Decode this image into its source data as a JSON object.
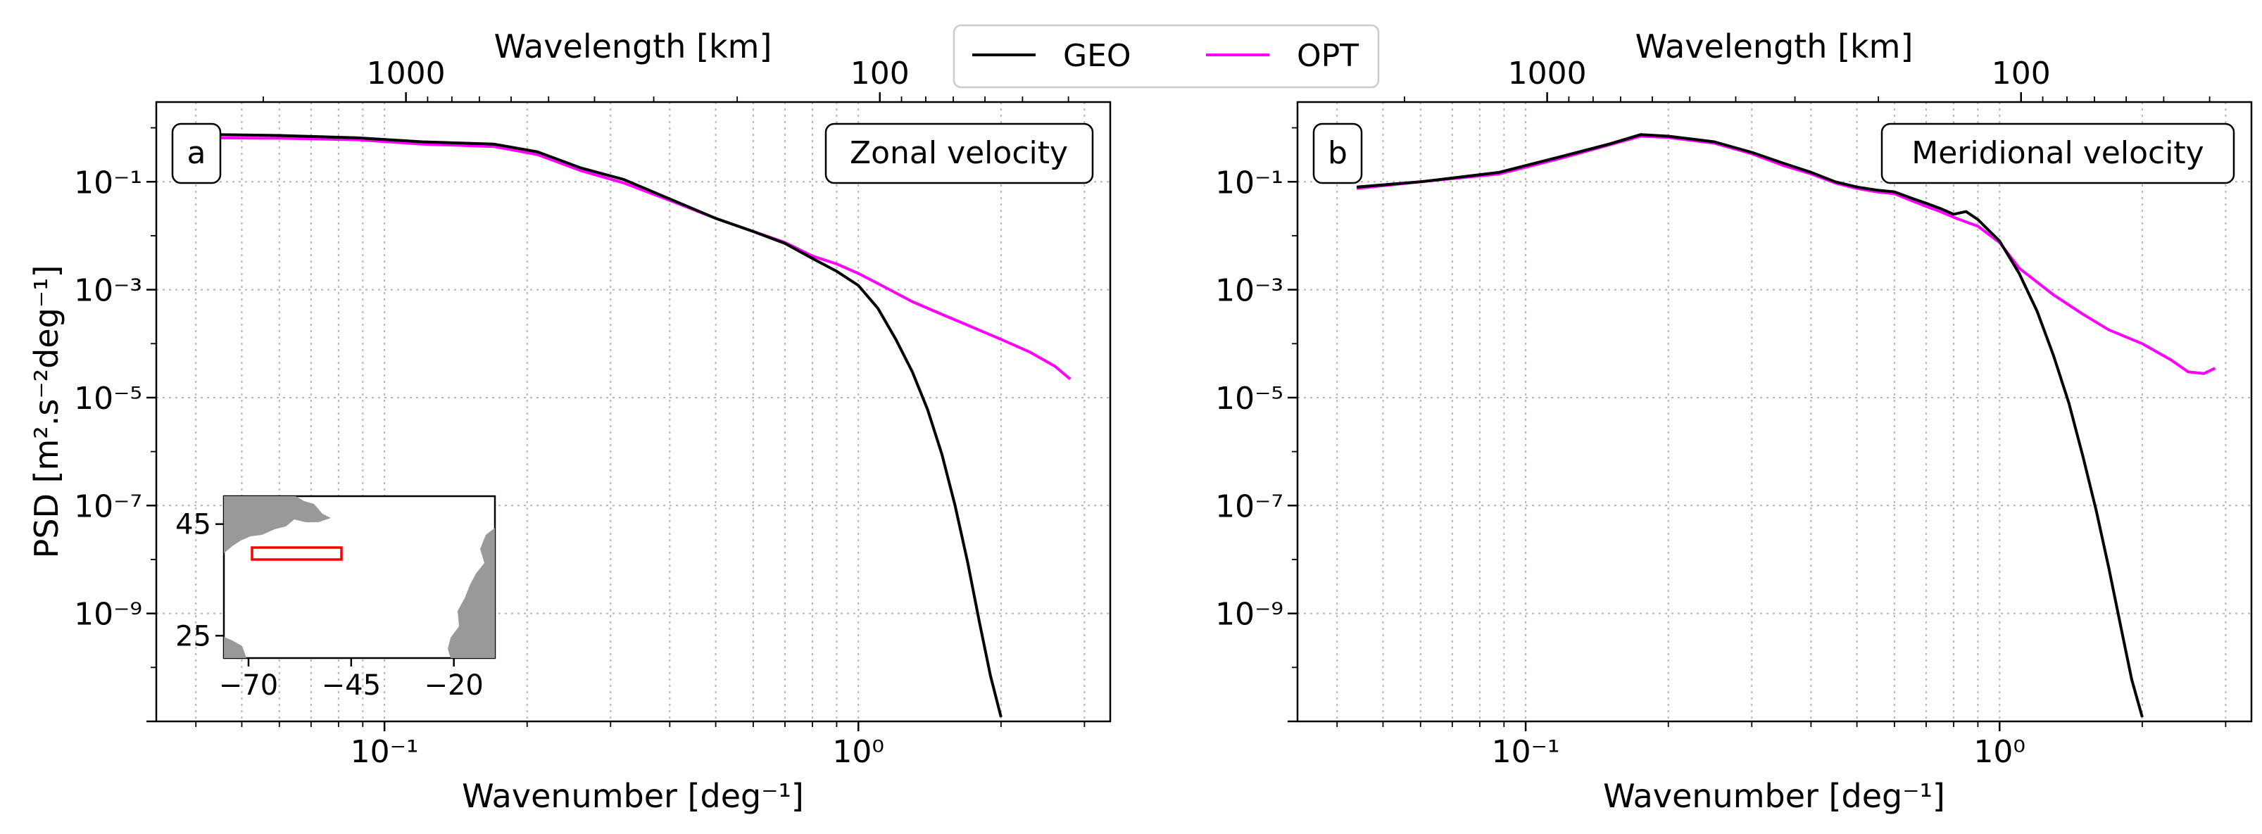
{
  "legend": {
    "items": [
      {
        "name": "GEO",
        "color": "#000000"
      },
      {
        "name": "OPT",
        "color": "#ff00ff"
      }
    ]
  },
  "chart_data": [
    {
      "type": "line",
      "panel": "a",
      "title": "Zonal velocity",
      "xscale": "log",
      "yscale": "log",
      "xlabel": "Wavenumber [deg⁻¹]",
      "ylabel": "PSD [m².s⁻²deg⁻¹]",
      "top_xlabel": "Wavelength [km]",
      "xlim": [
        0.033,
        3.4
      ],
      "ylim": [
        1e-11,
        3
      ],
      "xticks": [
        {
          "value": 0.1,
          "label": "10⁻¹"
        },
        {
          "value": 1,
          "label": "10⁰"
        }
      ],
      "yticks": [
        {
          "value": 1e-09,
          "label": "10⁻⁹"
        },
        {
          "value": 1e-07,
          "label": "10⁻⁷"
        },
        {
          "value": 1e-05,
          "label": "10⁻⁵"
        },
        {
          "value": 0.001,
          "label": "10⁻³"
        },
        {
          "value": 0.1,
          "label": "10⁻¹"
        }
      ],
      "top_ticks": [
        {
          "value": 0.111,
          "label": "1000"
        },
        {
          "value": 1.11,
          "label": "100"
        }
      ],
      "series": [
        {
          "name": "GEO",
          "color": "#000000",
          "x": [
            0.044,
            0.06,
            0.088,
            0.12,
            0.17,
            0.21,
            0.26,
            0.32,
            0.4,
            0.5,
            0.6,
            0.7,
            0.8,
            0.9,
            1.0,
            1.1,
            1.2,
            1.3,
            1.4,
            1.5,
            1.6,
            1.7,
            1.8,
            1.9,
            2.0
          ],
          "y": [
            0.75,
            0.72,
            0.65,
            0.55,
            0.5,
            0.36,
            0.18,
            0.11,
            0.048,
            0.021,
            0.012,
            0.0072,
            0.0038,
            0.0022,
            0.0012,
            0.00045,
            0.00012,
            3e-05,
            6e-06,
            9e-07,
            1e-07,
            9e-09,
            7e-10,
            7e-11,
            1.2e-11
          ]
        },
        {
          "name": "OPT",
          "color": "#ff00ff",
          "x": [
            0.044,
            0.06,
            0.088,
            0.12,
            0.17,
            0.21,
            0.26,
            0.32,
            0.4,
            0.5,
            0.6,
            0.7,
            0.8,
            0.9,
            1.0,
            1.1,
            1.3,
            1.5,
            1.7,
            2.0,
            2.3,
            2.6,
            2.8
          ],
          "y": [
            0.65,
            0.64,
            0.6,
            0.5,
            0.45,
            0.32,
            0.16,
            0.095,
            0.045,
            0.021,
            0.012,
            0.0075,
            0.0042,
            0.003,
            0.002,
            0.0013,
            0.0006,
            0.00035,
            0.00022,
            0.00012,
            7e-05,
            3.8e-05,
            2.2e-05
          ]
        }
      ],
      "inset": {
        "description_label": "region map",
        "xticks": [
          {
            "value": -70,
            "label": "−70"
          },
          {
            "value": -45,
            "label": "−45"
          },
          {
            "value": -20,
            "label": "−20"
          }
        ],
        "yticks": [
          {
            "value": 45,
            "label": "45"
          },
          {
            "value": 25,
            "label": "25"
          }
        ],
        "xlim": [
          -76,
          -10
        ],
        "ylim": [
          21,
          50
        ],
        "region_box": {
          "lon": [
            -70,
            -45
          ],
          "lat": [
            40,
            42
          ]
        },
        "box_color": "#ff0000",
        "land_color": "#999999"
      }
    },
    {
      "type": "line",
      "panel": "b",
      "title": "Meridional velocity",
      "xscale": "log",
      "yscale": "log",
      "xlabel": "Wavenumber [deg⁻¹]",
      "ylabel": "",
      "top_xlabel": "Wavelength [km]",
      "xlim": [
        0.033,
        3.4
      ],
      "ylim": [
        1e-11,
        3
      ],
      "xticks": [
        {
          "value": 0.1,
          "label": "10⁻¹"
        },
        {
          "value": 1,
          "label": "10⁰"
        }
      ],
      "yticks": [
        {
          "value": 1e-09,
          "label": "10⁻⁹"
        },
        {
          "value": 1e-07,
          "label": "10⁻⁷"
        },
        {
          "value": 1e-05,
          "label": "10⁻⁵"
        },
        {
          "value": 0.001,
          "label": "10⁻³"
        },
        {
          "value": 0.1,
          "label": "10⁻¹"
        }
      ],
      "top_ticks": [
        {
          "value": 0.111,
          "label": "1000"
        },
        {
          "value": 1.11,
          "label": "100"
        }
      ],
      "series": [
        {
          "name": "GEO",
          "color": "#000000",
          "x": [
            0.044,
            0.06,
            0.088,
            0.12,
            0.15,
            0.175,
            0.2,
            0.25,
            0.3,
            0.35,
            0.4,
            0.45,
            0.5,
            0.55,
            0.6,
            0.65,
            0.7,
            0.75,
            0.8,
            0.85,
            0.9,
            1.0,
            1.1,
            1.2,
            1.3,
            1.4,
            1.5,
            1.6,
            1.7,
            1.8,
            1.9,
            2.0
          ],
          "y": [
            0.08,
            0.1,
            0.15,
            0.3,
            0.5,
            0.75,
            0.7,
            0.55,
            0.35,
            0.22,
            0.15,
            0.1,
            0.08,
            0.07,
            0.065,
            0.05,
            0.04,
            0.032,
            0.025,
            0.028,
            0.02,
            0.008,
            0.002,
            0.0004,
            6e-05,
            8e-06,
            8e-07,
            8e-08,
            7e-09,
            6e-10,
            6e-11,
            1.2e-11
          ]
        },
        {
          "name": "OPT",
          "color": "#ff00ff",
          "x": [
            0.044,
            0.06,
            0.088,
            0.12,
            0.15,
            0.175,
            0.2,
            0.25,
            0.3,
            0.35,
            0.4,
            0.45,
            0.5,
            0.55,
            0.6,
            0.65,
            0.7,
            0.75,
            0.8,
            0.85,
            0.9,
            1.0,
            1.1,
            1.3,
            1.5,
            1.7,
            2.0,
            2.3,
            2.5,
            2.7,
            2.85
          ],
          "y": [
            0.075,
            0.1,
            0.14,
            0.28,
            0.48,
            0.7,
            0.66,
            0.52,
            0.33,
            0.2,
            0.14,
            0.095,
            0.075,
            0.065,
            0.06,
            0.045,
            0.035,
            0.028,
            0.022,
            0.018,
            0.015,
            0.0075,
            0.0025,
            0.0008,
            0.00035,
            0.00018,
            0.0001,
            5e-05,
            3e-05,
            2.8e-05,
            3.5e-05
          ]
        }
      ]
    }
  ]
}
